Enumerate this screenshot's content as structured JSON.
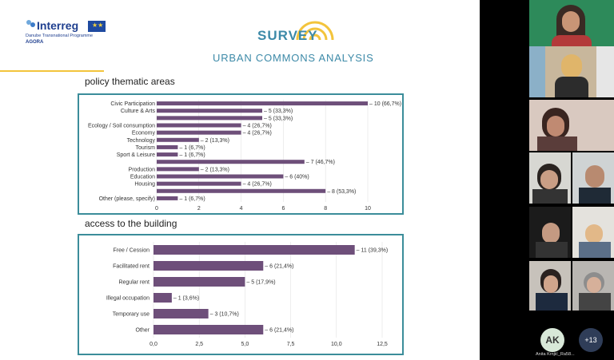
{
  "slide": {
    "logo": {
      "brand": "Interreg",
      "program": "Danube Transnational Programme",
      "project": "AGORA"
    },
    "title": "SURVEY",
    "subtitle": "URBAN COMMONS ANALYSIS",
    "section1": "policy thematic areas",
    "section2": "access to the building"
  },
  "chart_data": [
    {
      "type": "bar",
      "orientation": "horizontal",
      "title": "policy thematic areas",
      "categories": [
        "Civic Participation",
        "Culture & Arts",
        "",
        "Ecology / Soil consumption",
        "Economy",
        "Technology",
        "Tourism",
        "Sport & Leisure",
        "",
        "Production",
        "Education",
        "Housing",
        "",
        "Other (please, specify)"
      ],
      "values": [
        10,
        5,
        5,
        4,
        4,
        2,
        1,
        1,
        7,
        2,
        6,
        4,
        8,
        1
      ],
      "data_labels": [
        "10 (66,7%)",
        "5 (33,3%)",
        "5 (33,3%)",
        "4 (26,7%)",
        "4 (26,7%)",
        "2 (13,3%)",
        "1 (6,7%)",
        "1 (6,7%)",
        "7 (46,7%)",
        "2 (13,3%)",
        "6 (40%)",
        "4 (26,7%)",
        "8 (53,3%)",
        "1 (6,7%)"
      ],
      "xlim": [
        0,
        10
      ],
      "xticks": [
        "0",
        "2",
        "4",
        "6",
        "8",
        "10"
      ],
      "color": "#6e4f7a"
    },
    {
      "type": "bar",
      "orientation": "horizontal",
      "title": "access to the building",
      "categories": [
        "Free / Cession",
        "Facilitated rent",
        "Regular rent",
        "Illegal occupation",
        "Temporary use",
        "Other"
      ],
      "values": [
        11,
        6,
        5,
        1,
        3,
        6
      ],
      "data_labels": [
        "11 (39,3%)",
        "6 (21,4%)",
        "5 (17,9%)",
        "1 (3,6%)",
        "3 (10,7%)",
        "6 (21,4%)"
      ],
      "xlim": [
        0,
        12.5
      ],
      "xticks": [
        "0,0",
        "2,5",
        "5,0",
        "7,5",
        "10,0",
        "12,5"
      ],
      "color": "#6e4f7a"
    }
  ],
  "video": {
    "ak_initials": "AK",
    "ak_name": "Anita Krnjić_Ra58...",
    "more_count": "+13"
  }
}
